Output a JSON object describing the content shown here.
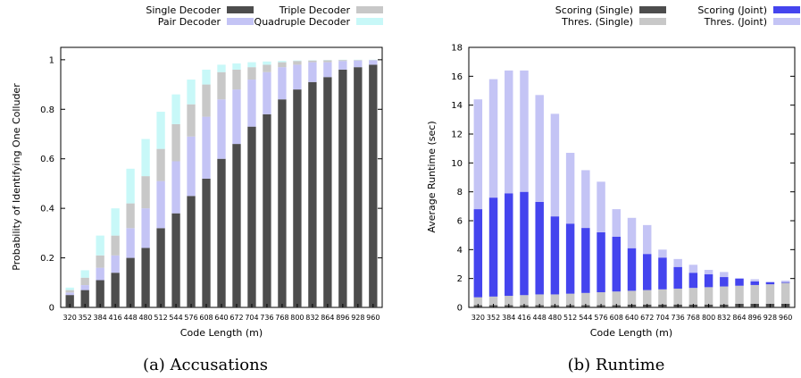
{
  "chart_data": [
    {
      "type": "bar",
      "stacked": true,
      "caption": "(a) Accusations",
      "xlabel": "Code Length (m)",
      "ylabel": "Probability of Identifying One Colluder",
      "ylim": [
        0,
        1.05
      ],
      "yticks": [
        0,
        0.2,
        0.4,
        0.6,
        0.8,
        1
      ],
      "grid": false,
      "legend_position": "top",
      "categories": [
        "320",
        "352",
        "384",
        "416",
        "448",
        "480",
        "512",
        "544",
        "576",
        "608",
        "640",
        "672",
        "704",
        "736",
        "768",
        "800",
        "832",
        "864",
        "896",
        "928",
        "960"
      ],
      "series": [
        {
          "name": "Single Decoder",
          "color": "#4d4d4d",
          "cumulative": [
            0.05,
            0.07,
            0.11,
            0.14,
            0.2,
            0.24,
            0.32,
            0.38,
            0.45,
            0.52,
            0.6,
            0.66,
            0.73,
            0.78,
            0.84,
            0.88,
            0.91,
            0.93,
            0.96,
            0.97,
            0.98
          ]
        },
        {
          "name": "Pair Decoder",
          "color": "#c4c4f5",
          "cumulative": [
            0.06,
            0.09,
            0.16,
            0.21,
            0.32,
            0.4,
            0.51,
            0.59,
            0.69,
            0.77,
            0.84,
            0.88,
            0.92,
            0.95,
            0.97,
            0.98,
            0.99,
            0.99,
            0.995,
            0.997,
            0.998
          ]
        },
        {
          "name": "Triple Decoder",
          "color": "#c8c8c8",
          "cumulative": [
            0.07,
            0.12,
            0.21,
            0.29,
            0.42,
            0.53,
            0.64,
            0.74,
            0.82,
            0.9,
            0.95,
            0.96,
            0.97,
            0.98,
            0.99,
            0.995,
            0.997,
            0.998,
            0.999,
            0.999,
            0.999
          ]
        },
        {
          "name": "Quadruple Decoder",
          "color": "#c8f8f8",
          "cumulative": [
            0.08,
            0.15,
            0.29,
            0.4,
            0.56,
            0.68,
            0.79,
            0.86,
            0.92,
            0.96,
            0.98,
            0.985,
            0.99,
            0.993,
            0.995,
            0.997,
            0.998,
            0.999,
            1.0,
            1.0,
            1.0
          ]
        }
      ]
    },
    {
      "type": "bar",
      "stacked": true,
      "caption": "(b) Runtime",
      "xlabel": "Code Length (m)",
      "ylabel": "Average Runtime (sec)",
      "ylim": [
        0,
        18
      ],
      "yticks": [
        0,
        2,
        4,
        6,
        8,
        10,
        12,
        14,
        16,
        18
      ],
      "grid": false,
      "legend_position": "top",
      "categories": [
        "320",
        "352",
        "384",
        "416",
        "448",
        "480",
        "512",
        "544",
        "576",
        "608",
        "640",
        "672",
        "704",
        "736",
        "768",
        "800",
        "832",
        "864",
        "896",
        "928",
        "960"
      ],
      "series": [
        {
          "name": "Scoring (Single)",
          "color": "#4d4d4d",
          "cumulative": [
            0.15,
            0.15,
            0.15,
            0.15,
            0.15,
            0.15,
            0.15,
            0.15,
            0.15,
            0.15,
            0.2,
            0.2,
            0.2,
            0.2,
            0.2,
            0.2,
            0.2,
            0.25,
            0.25,
            0.25,
            0.25
          ]
        },
        {
          "name": "Thres. (Single)",
          "color": "#c8c8c8",
          "cumulative": [
            0.7,
            0.75,
            0.8,
            0.85,
            0.9,
            0.9,
            0.95,
            1.0,
            1.05,
            1.1,
            1.15,
            1.2,
            1.25,
            1.3,
            1.35,
            1.4,
            1.45,
            1.5,
            1.55,
            1.6,
            1.7
          ]
        },
        {
          "name": "Scoring (Joint)",
          "color": "#4444ee",
          "cumulative": [
            6.8,
            7.6,
            7.9,
            8.0,
            7.3,
            6.3,
            5.8,
            5.5,
            5.2,
            4.9,
            4.1,
            3.7,
            3.45,
            2.8,
            2.4,
            2.3,
            2.1,
            2.0,
            1.8,
            1.75,
            1.75
          ]
        },
        {
          "name": "Thres. (Joint)",
          "color": "#c4c4f5",
          "cumulative": [
            14.4,
            15.8,
            16.4,
            16.4,
            14.7,
            13.4,
            10.7,
            9.5,
            8.7,
            6.8,
            6.2,
            5.7,
            4.0,
            3.35,
            2.95,
            2.6,
            2.45,
            1.9,
            1.95,
            1.75,
            1.85
          ]
        }
      ]
    }
  ]
}
